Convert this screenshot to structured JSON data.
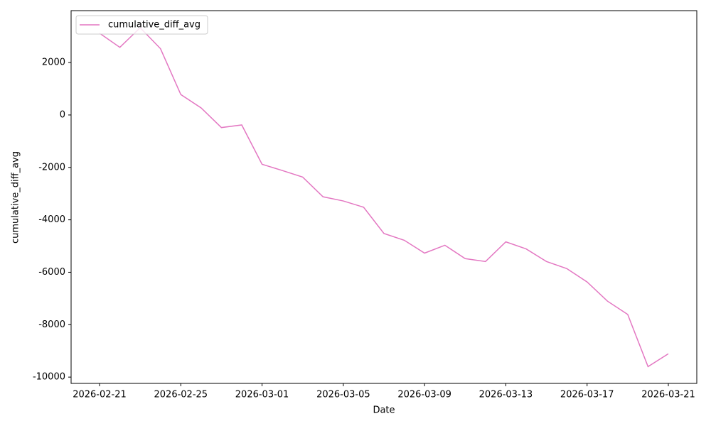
{
  "chart_data": {
    "type": "line",
    "x_label": "Date",
    "y_label": "cumulative_diff_avg",
    "x": [
      "2026-02-21",
      "2026-02-22",
      "2026-02-23",
      "2026-02-24",
      "2026-02-25",
      "2026-02-26",
      "2026-02-27",
      "2026-02-28",
      "2026-03-01",
      "2026-03-02",
      "2026-03-03",
      "2026-03-04",
      "2026-03-05",
      "2026-03-06",
      "2026-03-07",
      "2026-03-08",
      "2026-03-09",
      "2026-03-10",
      "2026-03-11",
      "2026-03-12",
      "2026-03-13",
      "2026-03-14",
      "2026-03-15",
      "2026-03-16",
      "2026-03-17",
      "2026-03-18",
      "2026-03-19",
      "2026-03-20",
      "2026-03-21"
    ],
    "series": [
      {
        "name": "cumulative_diff_avg",
        "color": "#e377c2",
        "values": [
          3120,
          2580,
          3330,
          2530,
          780,
          270,
          -480,
          -380,
          -1880,
          -2120,
          -2370,
          -3120,
          -3280,
          -3520,
          -4520,
          -4780,
          -5270,
          -4970,
          -5480,
          -5590,
          -4840,
          -5110,
          -5590,
          -5860,
          -6370,
          -7100,
          -7610,
          -9600,
          -9110
        ]
      }
    ],
    "xlim": [
      "2026-02-19T14:24",
      "2026-03-22T09:36"
    ],
    "xticks": [
      "2026-02-21",
      "2026-02-25",
      "2026-03-01",
      "2026-03-05",
      "2026-03-09",
      "2026-03-13",
      "2026-03-17",
      "2026-03-21"
    ],
    "ylim": [
      -10240,
      3980
    ],
    "yticks": [
      -10000,
      -8000,
      -6000,
      -4000,
      -2000,
      0,
      2000
    ],
    "legend": "upper left",
    "grid": false
  }
}
